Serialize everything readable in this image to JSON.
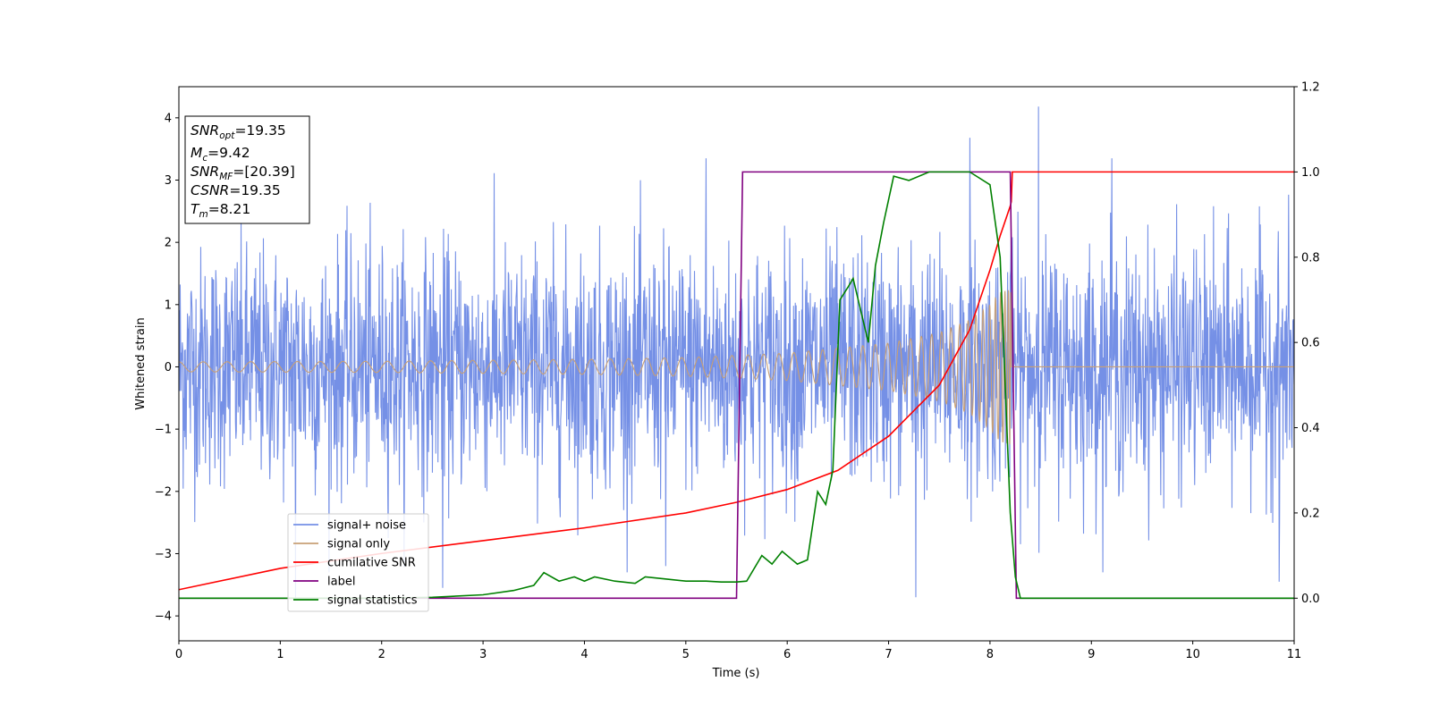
{
  "chart_data": {
    "type": "line",
    "title": "",
    "xlabel": "Time (s)",
    "ylabel": "Whitened strain",
    "y2label": "",
    "xlim": [
      0,
      11
    ],
    "ylim": [
      -4.4,
      4.5
    ],
    "y2lim": [
      -0.1,
      1.2
    ],
    "grid": false,
    "legend_position": "lower-left",
    "x_ticks": [
      0,
      1,
      2,
      3,
      4,
      5,
      6,
      7,
      8,
      9,
      10,
      11
    ],
    "x_tick_labels": [
      "0",
      "1",
      "2",
      "3",
      "4",
      "5",
      "6",
      "7",
      "8",
      "9",
      "10",
      "11"
    ],
    "y_ticks": [
      -4,
      -3,
      -2,
      -1,
      0,
      1,
      2,
      3,
      4
    ],
    "y_tick_labels": [
      "−4",
      "−3",
      "−2",
      "−1",
      "0",
      "1",
      "2",
      "3",
      "4"
    ],
    "y2_ticks": [
      0.0,
      0.2,
      0.4,
      0.6,
      0.8,
      1.0,
      1.2
    ],
    "y2_tick_labels": [
      "0.0",
      "0.2",
      "0.4",
      "0.6",
      "0.8",
      "1.0",
      "1.2"
    ],
    "annotation": [
      {
        "name": "SNR",
        "sub": "opt",
        "value": "=19.35"
      },
      {
        "name": "M",
        "sub": "c",
        "value": "=9.42"
      },
      {
        "name": "SNR",
        "sub": "MF",
        "value": "=[20.39]"
      },
      {
        "name": "CSNR",
        "sub": "",
        "value": "=19.35"
      },
      {
        "name": "T",
        "sub": "m",
        "value": "=8.21"
      }
    ],
    "series": [
      {
        "name": "signal+ noise",
        "axis": "left",
        "color": "#7590e6",
        "description": "whitened strain noise, approx. Gaussian, amplitude mostly within ±2.5 with spikes to ~4.2 and ~-3.7",
        "noise_std": 0.95,
        "spikes": [
          [
            8.48,
            4.18
          ],
          [
            7.27,
            -3.7
          ],
          [
            7.8,
            3.68
          ],
          [
            1.15,
            -3.75
          ],
          [
            10.85,
            -3.45
          ],
          [
            9.2,
            3.35
          ],
          [
            5.2,
            3.35
          ],
          [
            2.6,
            -3.55
          ],
          [
            4.8,
            -3.2
          ]
        ]
      },
      {
        "name": "signal only",
        "axis": "left",
        "color": "#c8a076",
        "description": "chirp; envelope grows from ~0.08 at t=0 to ~1.25 at t=8.21, zero afterwards",
        "envelope": [
          [
            0,
            0.08
          ],
          [
            2,
            0.09
          ],
          [
            4,
            0.12
          ],
          [
            5,
            0.15
          ],
          [
            6,
            0.22
          ],
          [
            7,
            0.38
          ],
          [
            7.5,
            0.55
          ],
          [
            7.8,
            0.75
          ],
          [
            8.0,
            1.0
          ],
          [
            8.1,
            1.2
          ],
          [
            8.21,
            1.25
          ]
        ],
        "merger_time": 8.21
      },
      {
        "name": "cumilative SNR",
        "axis": "right",
        "color": "#ff0000",
        "x": [
          0,
          1,
          2,
          3,
          4,
          5,
          5.5,
          6,
          6.5,
          7,
          7.5,
          7.8,
          8.0,
          8.1,
          8.2,
          8.21,
          8.22,
          11
        ],
        "y": [
          0.02,
          0.07,
          0.105,
          0.135,
          0.165,
          0.2,
          0.225,
          0.255,
          0.3,
          0.38,
          0.5,
          0.63,
          0.77,
          0.85,
          0.92,
          0.93,
          1.0,
          1.0
        ]
      },
      {
        "name": "label",
        "axis": "right",
        "color": "#800080",
        "x": [
          0,
          5.5,
          5.56,
          8.2,
          8.26,
          11
        ],
        "y": [
          0,
          0,
          1,
          1,
          0,
          0
        ]
      },
      {
        "name": "signal statistics",
        "axis": "right",
        "color": "#008000",
        "x": [
          0,
          1,
          2,
          2.5,
          3,
          3.3,
          3.5,
          3.6,
          3.75,
          3.9,
          4.0,
          4.1,
          4.3,
          4.5,
          4.6,
          4.8,
          5.0,
          5.2,
          5.35,
          5.5,
          5.6,
          5.75,
          5.85,
          5.95,
          6.1,
          6.2,
          6.3,
          6.38,
          6.45,
          6.52,
          6.6,
          6.65,
          6.72,
          6.8,
          6.87,
          6.95,
          7.05,
          7.2,
          7.4,
          7.6,
          7.8,
          8.0,
          8.1,
          8.15,
          8.2,
          8.25,
          8.3,
          9,
          10,
          11
        ],
        "y": [
          0.0,
          0.0,
          0.0,
          0.002,
          0.008,
          0.018,
          0.03,
          0.06,
          0.04,
          0.05,
          0.04,
          0.05,
          0.04,
          0.035,
          0.05,
          0.045,
          0.04,
          0.04,
          0.038,
          0.038,
          0.04,
          0.1,
          0.08,
          0.11,
          0.08,
          0.09,
          0.25,
          0.22,
          0.3,
          0.7,
          0.73,
          0.75,
          0.68,
          0.6,
          0.78,
          0.88,
          0.99,
          0.98,
          1.0,
          1.0,
          1.0,
          0.97,
          0.8,
          0.5,
          0.2,
          0.05,
          0.0,
          0.0,
          0.0,
          0.0
        ]
      }
    ]
  }
}
